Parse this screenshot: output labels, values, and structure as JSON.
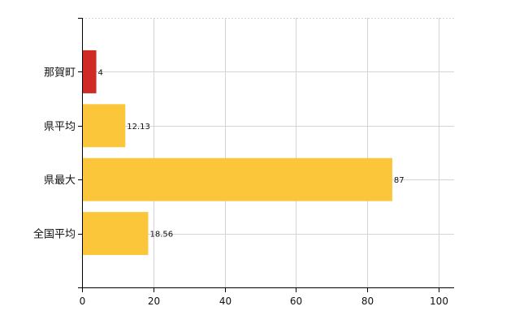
{
  "chart_data": {
    "type": "bar",
    "orientation": "horizontal",
    "categories": [
      "那賀町",
      "県平均",
      "県最大",
      "全国平均"
    ],
    "values": [
      4,
      12.13,
      87,
      18.56
    ],
    "value_labels": [
      "4",
      "12.13",
      "87",
      "18.56"
    ],
    "colors": [
      "#d02a26",
      "#fbc63a",
      "#fbc63a",
      "#fbc63a"
    ],
    "xlim": [
      0,
      104
    ],
    "xticks": [
      0,
      20,
      40,
      60,
      80,
      100
    ],
    "xtick_labels": [
      "0",
      "20",
      "40",
      "60",
      "80",
      "100"
    ],
    "grid": true,
    "title": "",
    "xlabel": "",
    "ylabel": ""
  }
}
